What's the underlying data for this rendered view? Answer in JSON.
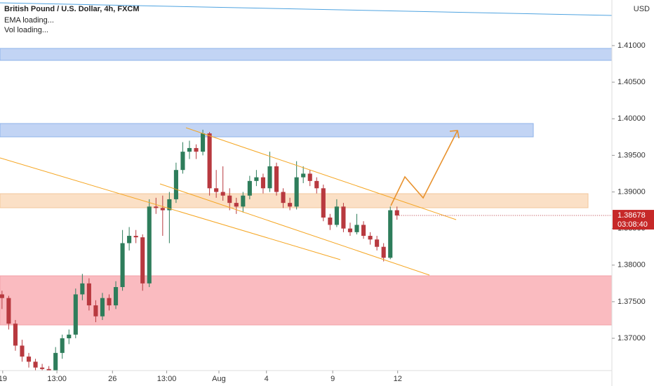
{
  "chart_data": {
    "type": "candlestick",
    "title": "British Pound / U.S. Dollar, 4h, FXCM",
    "indicators": [
      "EMA loading...",
      "Vol loading..."
    ],
    "currency": "USD",
    "up_color": "#2e7d5b",
    "down_color": "#b8393f",
    "xlim": [
      -0.3,
      91.1
    ],
    "ylim": [
      1.36559,
      1.41623
    ],
    "xticks": [
      {
        "value": 0.1,
        "label": "19"
      },
      {
        "value": 8.2,
        "label": "13:00"
      },
      {
        "value": 16.5,
        "label": "26"
      },
      {
        "value": 24.6,
        "label": "13:00"
      },
      {
        "value": 32.4,
        "label": "Aug"
      },
      {
        "value": 39.5,
        "label": "4"
      },
      {
        "value": 49.4,
        "label": "9"
      },
      {
        "value": 59.1,
        "label": "12"
      }
    ],
    "yticks": [
      {
        "value": 1.37,
        "label": "1.37000"
      },
      {
        "value": 1.375,
        "label": "1.37500"
      },
      {
        "value": 1.38,
        "label": "1.38000"
      },
      {
        "value": 1.385,
        "label": "1.38500"
      },
      {
        "value": 1.39,
        "label": "1.39000"
      },
      {
        "value": 1.395,
        "label": "1.39500"
      },
      {
        "value": 1.4,
        "label": "1.40000"
      },
      {
        "value": 1.405,
        "label": "1.40500"
      },
      {
        "value": 1.41,
        "label": "1.41000"
      }
    ],
    "last_price": {
      "value": 1.38678,
      "label": "1.38678"
    },
    "countdown": "03:08:40",
    "ohlc": [
      [
        1.376,
        1.3765,
        1.374,
        1.3755
      ],
      [
        1.3755,
        1.3758,
        1.3712,
        1.372
      ],
      [
        1.372,
        1.3725,
        1.3683,
        1.369
      ],
      [
        1.369,
        1.3698,
        1.3668,
        1.3675
      ],
      [
        1.3675,
        1.368,
        1.366,
        1.3668
      ],
      [
        1.3668,
        1.3672,
        1.3655,
        1.366
      ],
      [
        1.366,
        1.3665,
        1.365,
        1.3658
      ],
      [
        1.3658,
        1.3662,
        1.3645,
        1.3652
      ],
      [
        1.3652,
        1.3688,
        1.365,
        1.368
      ],
      [
        1.368,
        1.3705,
        1.3672,
        1.37
      ],
      [
        1.37,
        1.3712,
        1.3692,
        1.3705
      ],
      [
        1.3705,
        1.3768,
        1.37,
        1.376
      ],
      [
        1.376,
        1.3788,
        1.3752,
        1.3775
      ],
      [
        1.3775,
        1.3782,
        1.3738,
        1.3745
      ],
      [
        1.3745,
        1.3752,
        1.3722,
        1.373
      ],
      [
        1.373,
        1.3762,
        1.3725,
        1.3755
      ],
      [
        1.3755,
        1.376,
        1.3738,
        1.3745
      ],
      [
        1.3745,
        1.3778,
        1.374,
        1.377
      ],
      [
        1.377,
        1.3848,
        1.3765,
        1.383
      ],
      [
        1.383,
        1.3852,
        1.382,
        1.384
      ],
      [
        1.384,
        1.3848,
        1.383,
        1.3838
      ],
      [
        1.3838,
        1.3842,
        1.3765,
        1.3775
      ],
      [
        1.3775,
        1.389,
        1.377,
        1.388
      ],
      [
        1.388,
        1.3892,
        1.387,
        1.3878
      ],
      [
        1.3878,
        1.3895,
        1.384,
        1.3875
      ],
      [
        1.3875,
        1.39,
        1.383,
        1.389
      ],
      [
        1.389,
        1.394,
        1.3885,
        1.393
      ],
      [
        1.393,
        1.3968,
        1.3925,
        1.3955
      ],
      [
        1.3955,
        1.397,
        1.3945,
        1.396
      ],
      [
        1.396,
        1.3965,
        1.3945,
        1.3955
      ],
      [
        1.3955,
        1.3985,
        1.395,
        1.398
      ],
      [
        1.398,
        1.3982,
        1.3895,
        1.3905
      ],
      [
        1.3905,
        1.393,
        1.3892,
        1.39
      ],
      [
        1.39,
        1.3935,
        1.3888,
        1.3895
      ],
      [
        1.3895,
        1.3905,
        1.3875,
        1.3885
      ],
      [
        1.3885,
        1.3892,
        1.387,
        1.388
      ],
      [
        1.388,
        1.39,
        1.3872,
        1.3895
      ],
      [
        1.3895,
        1.3922,
        1.389,
        1.3915
      ],
      [
        1.3915,
        1.393,
        1.3908,
        1.392
      ],
      [
        1.392,
        1.3925,
        1.3898,
        1.3905
      ],
      [
        1.3905,
        1.3955,
        1.39,
        1.3935
      ],
      [
        1.3935,
        1.394,
        1.3895,
        1.39
      ],
      [
        1.39,
        1.3905,
        1.3878,
        1.3885
      ],
      [
        1.3885,
        1.3892,
        1.3875,
        1.388
      ],
      [
        1.388,
        1.3942,
        1.3876,
        1.392
      ],
      [
        1.392,
        1.3935,
        1.3912,
        1.3925
      ],
      [
        1.3925,
        1.393,
        1.3908,
        1.3915
      ],
      [
        1.3915,
        1.392,
        1.3898,
        1.3905
      ],
      [
        1.3905,
        1.391,
        1.386,
        1.3865
      ],
      [
        1.3865,
        1.387,
        1.3848,
        1.3855
      ],
      [
        1.3855,
        1.389,
        1.3852,
        1.388
      ],
      [
        1.388,
        1.3885,
        1.3845,
        1.385
      ],
      [
        1.385,
        1.3858,
        1.384,
        1.3845
      ],
      [
        1.3845,
        1.387,
        1.3842,
        1.3855
      ],
      [
        1.3855,
        1.386,
        1.3836,
        1.384
      ],
      [
        1.384,
        1.3845,
        1.3828,
        1.3835
      ],
      [
        1.3835,
        1.384,
        1.382,
        1.3825
      ],
      [
        1.3825,
        1.383,
        1.3805,
        1.381
      ],
      [
        1.381,
        1.388,
        1.3808,
        1.3875
      ],
      [
        1.3875,
        1.388,
        1.3862,
        1.38678
      ]
    ]
  }
}
